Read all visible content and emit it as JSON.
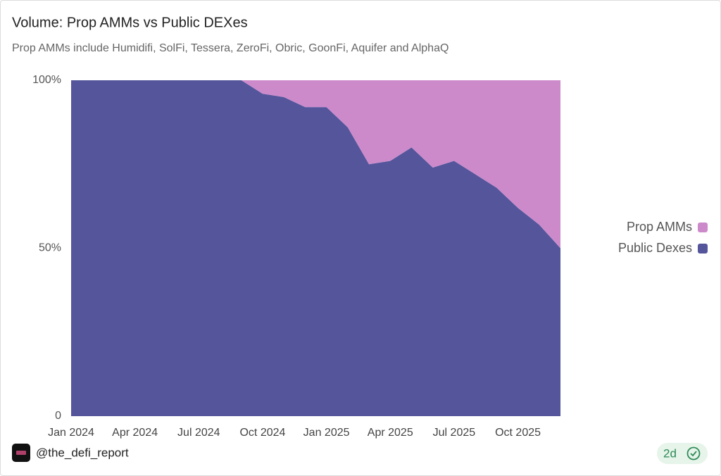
{
  "chart_data": {
    "type": "stacked_area",
    "title": "Volume: Prop AMMs vs Public DEXes",
    "subtitle": "Prop AMMs include Humidifi, SolFi, Tessera, ZeroFi, Obric, GoonFi, Aquifer and AlphaQ",
    "x": [
      "2024-01",
      "2024-02",
      "2024-03",
      "2024-04",
      "2024-05",
      "2024-06",
      "2024-07",
      "2024-08",
      "2024-09",
      "2024-10",
      "2024-11",
      "2024-12",
      "2025-01",
      "2025-02",
      "2025-03",
      "2025-04",
      "2025-05",
      "2025-06",
      "2025-07",
      "2025-08",
      "2025-09",
      "2025-10",
      "2025-11",
      "2025-12"
    ],
    "series": [
      {
        "name": "Prop AMMs",
        "color": "#cc8acb",
        "values": [
          0,
          0,
          0,
          0,
          0,
          0,
          0,
          0,
          0,
          4,
          5,
          8,
          8,
          14,
          25,
          24,
          20,
          26,
          24,
          28,
          32,
          38,
          43,
          50
        ]
      },
      {
        "name": "Public Dexes",
        "color": "#54559b",
        "values": [
          100,
          100,
          100,
          100,
          100,
          100,
          100,
          100,
          100,
          96,
          95,
          92,
          92,
          86,
          75,
          76,
          80,
          74,
          76,
          72,
          68,
          62,
          57,
          50
        ]
      }
    ],
    "xlim": [
      "2024-01",
      "2025-12"
    ],
    "xticks": [
      {
        "value": "2024-01",
        "label": "Jan 2024"
      },
      {
        "value": "2024-04",
        "label": "Apr 2024"
      },
      {
        "value": "2024-07",
        "label": "Jul 2024"
      },
      {
        "value": "2024-10",
        "label": "Oct 2024"
      },
      {
        "value": "2025-01",
        "label": "Jan 2025"
      },
      {
        "value": "2025-04",
        "label": "Apr 2025"
      },
      {
        "value": "2025-07",
        "label": "Jul 2025"
      },
      {
        "value": "2025-10",
        "label": "Oct 2025"
      }
    ],
    "ylim": [
      0,
      100
    ],
    "yticks": [
      0,
      {
        "value": 50,
        "label": "50%"
      },
      {
        "value": 100,
        "label": "100%"
      }
    ],
    "grid": false,
    "legend": "right"
  },
  "footer": {
    "handle": "@the_defi_report",
    "age": "2d"
  }
}
